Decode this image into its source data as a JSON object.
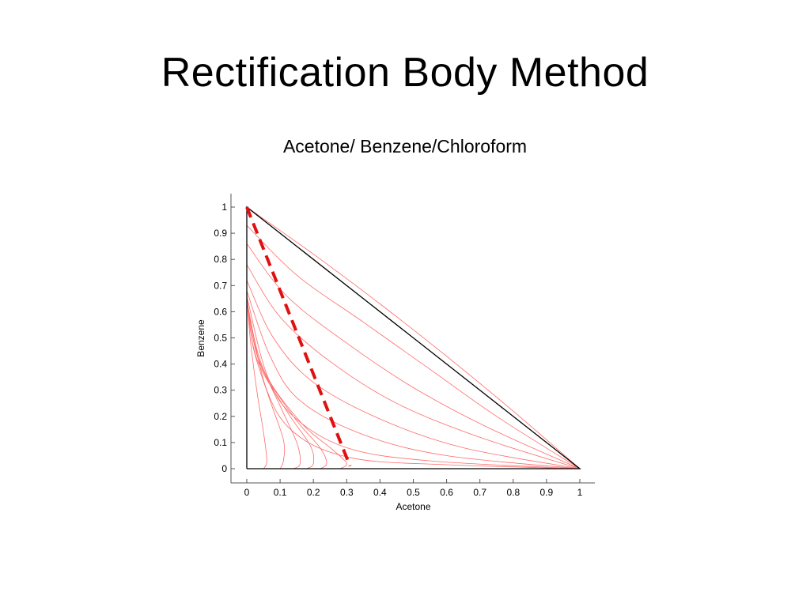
{
  "slide": {
    "title": "Rectification Body Method"
  },
  "chart_data": {
    "type": "line",
    "title": "Acetone/ Benzene/Chloroform",
    "xlabel": "Acetone",
    "ylabel": "Benzene",
    "xlim": [
      0,
      1
    ],
    "ylim": [
      0,
      1
    ],
    "x_ticks": [
      "0",
      "0.1",
      "0.2",
      "0.3",
      "0.4",
      "0.5",
      "0.6",
      "0.7",
      "0.8",
      "0.9",
      "1"
    ],
    "y_ticks": [
      "0",
      "0.1",
      "0.2",
      "0.3",
      "0.4",
      "0.5",
      "0.6",
      "0.7",
      "0.8",
      "0.9",
      "1"
    ],
    "grid": false,
    "colors": {
      "boundary": "#000000",
      "curves": "#ff6a6a",
      "boundary_line": "#e01010"
    },
    "triangle": {
      "x": [
        0,
        1,
        0,
        0
      ],
      "y": [
        0,
        0,
        1,
        0
      ]
    },
    "rectification_boundary": {
      "x": [
        0.0,
        0.31
      ],
      "y": [
        1.0,
        0.01
      ],
      "style": "dashed"
    },
    "residue_curves": [
      {
        "x": [
          0.0,
          0.2,
          0.4,
          0.6,
          0.8,
          1.0
        ],
        "y": [
          1.0,
          0.82,
          0.63,
          0.43,
          0.22,
          0.0
        ]
      },
      {
        "x": [
          0.0,
          0.15,
          0.35,
          0.55,
          0.75,
          1.0
        ],
        "y": [
          0.93,
          0.74,
          0.56,
          0.38,
          0.2,
          0.0
        ]
      },
      {
        "x": [
          0.0,
          0.12,
          0.3,
          0.5,
          0.72,
          1.0
        ],
        "y": [
          0.86,
          0.66,
          0.48,
          0.31,
          0.16,
          0.0
        ]
      },
      {
        "x": [
          0.0,
          0.1,
          0.25,
          0.45,
          0.7,
          1.0
        ],
        "y": [
          0.78,
          0.58,
          0.41,
          0.25,
          0.12,
          0.0
        ]
      },
      {
        "x": [
          0.0,
          0.08,
          0.2,
          0.4,
          0.65,
          1.0
        ],
        "y": [
          0.72,
          0.5,
          0.33,
          0.19,
          0.08,
          0.0
        ]
      },
      {
        "x": [
          0.0,
          0.07,
          0.16,
          0.35,
          0.6,
          1.0
        ],
        "y": [
          0.68,
          0.43,
          0.26,
          0.13,
          0.05,
          0.0
        ]
      },
      {
        "x": [
          0.0,
          0.06,
          0.14,
          0.3,
          0.55,
          1.0
        ],
        "y": [
          0.66,
          0.36,
          0.2,
          0.08,
          0.03,
          0.0
        ]
      },
      {
        "x": [
          0.0,
          0.06,
          0.15,
          0.32,
          0.6,
          1.0
        ],
        "y": [
          0.64,
          0.3,
          0.13,
          0.04,
          0.015,
          0.0
        ]
      },
      {
        "x": [
          0.0,
          0.05,
          0.16,
          0.26,
          0.3,
          0.28
        ],
        "y": [
          0.64,
          0.38,
          0.18,
          0.07,
          0.02,
          0.0
        ]
      },
      {
        "x": [
          0.0,
          0.04,
          0.14,
          0.22,
          0.24,
          0.22
        ],
        "y": [
          0.64,
          0.4,
          0.2,
          0.08,
          0.02,
          0.0
        ]
      },
      {
        "x": [
          0.0,
          0.03,
          0.12,
          0.19,
          0.2,
          0.18
        ],
        "y": [
          0.64,
          0.42,
          0.22,
          0.09,
          0.02,
          0.0
        ]
      },
      {
        "x": [
          0.0,
          0.03,
          0.1,
          0.15,
          0.16,
          0.14
        ],
        "y": [
          0.65,
          0.44,
          0.24,
          0.1,
          0.02,
          0.0
        ]
      },
      {
        "x": [
          0.0,
          0.02,
          0.07,
          0.11,
          0.11,
          0.1
        ],
        "y": [
          0.66,
          0.46,
          0.26,
          0.11,
          0.03,
          0.0
        ]
      },
      {
        "x": [
          0.0,
          0.01,
          0.03,
          0.05,
          0.06,
          0.05
        ],
        "y": [
          0.68,
          0.5,
          0.3,
          0.14,
          0.03,
          0.0
        ]
      }
    ]
  }
}
